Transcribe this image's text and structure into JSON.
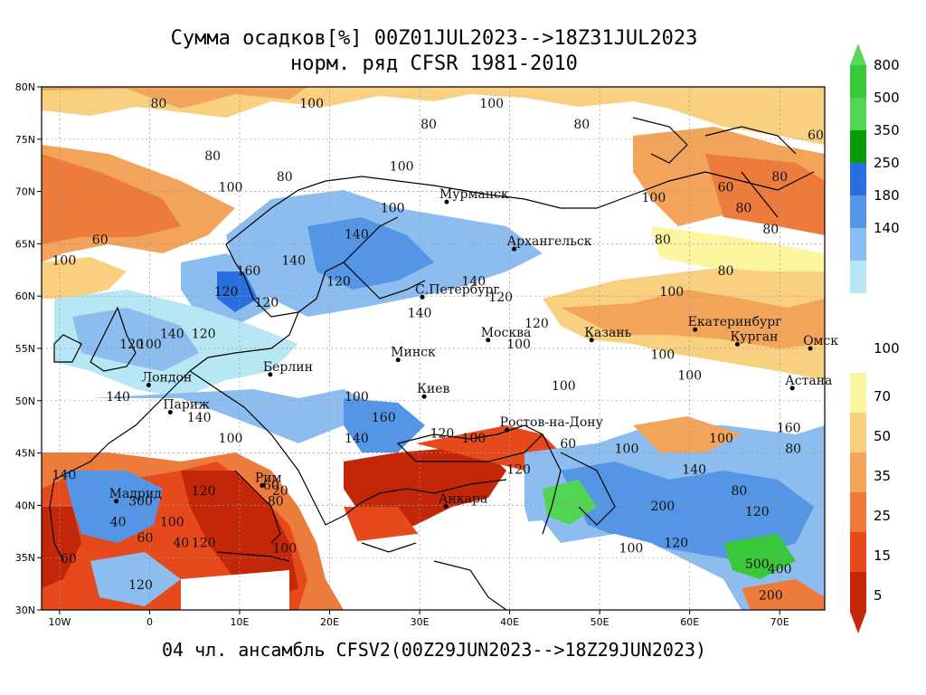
{
  "title": {
    "line1": "Сумма осадков[%] 00Z01JUL2023-->18Z31JUL2023",
    "line2": "норм. ряд CFSR 1981-2010"
  },
  "footer": "04 чл. ансамбль CFSV2(00Z29JUN2023-->18Z29JUN2023)",
  "axes": {
    "lon_ticks": [
      "10W",
      "0",
      "10E",
      "20E",
      "30E",
      "40E",
      "50E",
      "60E",
      "70E"
    ],
    "lat_ticks": [
      "80N",
      "75N",
      "70N",
      "65N",
      "60N",
      "55N",
      "50N",
      "45N",
      "40N",
      "35N",
      "30N"
    ]
  },
  "colorbar": {
    "upper": [
      {
        "label": "800",
        "color": "#39c839"
      },
      {
        "label": "500",
        "color": "#52d552"
      },
      {
        "label": "350",
        "color": "#0a9b0a"
      },
      {
        "label": "250",
        "color": "#2a6fe0"
      },
      {
        "label": "180",
        "color": "#5595e6"
      },
      {
        "label": "140",
        "color": "#8dbcef"
      },
      {
        "label": "",
        "color": "#b7e6f5"
      }
    ],
    "mid_label": "100",
    "lower": [
      {
        "label": "70",
        "color": "#fcf6a0"
      },
      {
        "label": "50",
        "color": "#f8d080"
      },
      {
        "label": "35",
        "color": "#f2a55a"
      },
      {
        "label": "25",
        "color": "#ec7b3c"
      },
      {
        "label": "15",
        "color": "#e64a1c"
      },
      {
        "label": "5",
        "color": "#c42608"
      }
    ],
    "top_arrow_color": "#58d858",
    "bottom_arrow_color": "#c42608"
  },
  "cities": [
    {
      "name": "Мурманск",
      "lon": 33,
      "lat": 69
    },
    {
      "name": "Архангельск",
      "lon": 40.5,
      "lat": 64.5
    },
    {
      "name": "С.Петербург",
      "lon": 30.3,
      "lat": 59.9
    },
    {
      "name": "Москва",
      "lon": 37.6,
      "lat": 55.8
    },
    {
      "name": "Казань",
      "lon": 49.1,
      "lat": 55.8
    },
    {
      "name": "Екатеринбург",
      "lon": 60.6,
      "lat": 56.8
    },
    {
      "name": "Курган",
      "lon": 65.3,
      "lat": 55.4
    },
    {
      "name": "Омск",
      "lon": 73.4,
      "lat": 55
    },
    {
      "name": "Астана",
      "lon": 71.4,
      "lat": 51.2
    },
    {
      "name": "Минск",
      "lon": 27.6,
      "lat": 53.9
    },
    {
      "name": "Киев",
      "lon": 30.5,
      "lat": 50.4
    },
    {
      "name": "Берлин",
      "lon": 13.4,
      "lat": 52.5
    },
    {
      "name": "Лондон",
      "lon": -0.1,
      "lat": 51.5
    },
    {
      "name": "Париж",
      "lon": 2.3,
      "lat": 48.9
    },
    {
      "name": "Ростов-на-Дону",
      "lon": 39.7,
      "lat": 47.2
    },
    {
      "name": "Рим",
      "lon": 12.5,
      "lat": 41.9
    },
    {
      "name": "Мадрид",
      "lon": -3.7,
      "lat": 40.4
    },
    {
      "name": "Анкара",
      "lon": 32.9,
      "lat": 39.9
    }
  ],
  "contour_labels": [
    {
      "t": "80",
      "lon": 1,
      "lat": 78
    },
    {
      "t": "100",
      "lon": 18,
      "lat": 78
    },
    {
      "t": "100",
      "lon": 38,
      "lat": 78
    },
    {
      "t": "80",
      "lon": 48,
      "lat": 76
    },
    {
      "t": "80",
      "lon": 31,
      "lat": 76
    },
    {
      "t": "100",
      "lon": 28,
      "lat": 72
    },
    {
      "t": "80",
      "lon": 7,
      "lat": 73
    },
    {
      "t": "80",
      "lon": 15,
      "lat": 71
    },
    {
      "t": "100",
      "lon": 9,
      "lat": 70
    },
    {
      "t": "100",
      "lon": 27,
      "lat": 68
    },
    {
      "t": "60",
      "lon": -5.5,
      "lat": 65
    },
    {
      "t": "100",
      "lon": -9.5,
      "lat": 63
    },
    {
      "t": "160",
      "lon": 11,
      "lat": 62
    },
    {
      "t": "140",
      "lon": 16,
      "lat": 63
    },
    {
      "t": "120",
      "lon": 21,
      "lat": 61
    },
    {
      "t": "120",
      "lon": 13,
      "lat": 59
    },
    {
      "t": "120",
      "lon": 8.5,
      "lat": 60
    },
    {
      "t": "140",
      "lon": 23,
      "lat": 65.5
    },
    {
      "t": "140",
      "lon": 36,
      "lat": 61
    },
    {
      "t": "120",
      "lon": 39,
      "lat": 59.5
    },
    {
      "t": "120",
      "lon": 43,
      "lat": 57
    },
    {
      "t": "100",
      "lon": 41,
      "lat": 55
    },
    {
      "t": "140",
      "lon": 30,
      "lat": 58
    },
    {
      "t": "100",
      "lon": 58,
      "lat": 60
    },
    {
      "t": "100",
      "lon": 57,
      "lat": 54
    },
    {
      "t": "100",
      "lon": 46,
      "lat": 51
    },
    {
      "t": "100",
      "lon": 60,
      "lat": 52
    },
    {
      "t": "80",
      "lon": 64,
      "lat": 62
    },
    {
      "t": "80",
      "lon": 57,
      "lat": 65
    },
    {
      "t": "80",
      "lon": 66,
      "lat": 68
    },
    {
      "t": "100",
      "lon": 56,
      "lat": 69
    },
    {
      "t": "80",
      "lon": 69,
      "lat": 66
    },
    {
      "t": "60",
      "lon": 64,
      "lat": 70
    },
    {
      "t": "80",
      "lon": 70,
      "lat": 71
    },
    {
      "t": "60",
      "lon": 74,
      "lat": 75
    },
    {
      "t": "120",
      "lon": 6,
      "lat": 56
    },
    {
      "t": "140",
      "lon": 2.5,
      "lat": 56
    },
    {
      "t": "100",
      "lon": 0,
      "lat": 55
    },
    {
      "t": "120",
      "lon": -2,
      "lat": 55
    },
    {
      "t": "140",
      "lon": -3.5,
      "lat": 50
    },
    {
      "t": "100",
      "lon": 9,
      "lat": 46
    },
    {
      "t": "140",
      "lon": 5.5,
      "lat": 48
    },
    {
      "t": "100",
      "lon": 23,
      "lat": 50
    },
    {
      "t": "160",
      "lon": 26,
      "lat": 48
    },
    {
      "t": "140",
      "lon": 23,
      "lat": 46
    },
    {
      "t": "120",
      "lon": 32.5,
      "lat": 46.5
    },
    {
      "t": "100",
      "lon": 36,
      "lat": 46
    },
    {
      "t": "60",
      "lon": 46.5,
      "lat": 45.5
    },
    {
      "t": "120",
      "lon": 41,
      "lat": 43
    },
    {
      "t": "100",
      "lon": 53,
      "lat": 45
    },
    {
      "t": "100",
      "lon": 63.5,
      "lat": 46
    },
    {
      "t": "140",
      "lon": 60.5,
      "lat": 43
    },
    {
      "t": "160",
      "lon": 71,
      "lat": 47
    },
    {
      "t": "80",
      "lon": 71.5,
      "lat": 45
    },
    {
      "t": "200",
      "lon": 57,
      "lat": 39.5
    },
    {
      "t": "80",
      "lon": 65.5,
      "lat": 41
    },
    {
      "t": "120",
      "lon": 67.5,
      "lat": 39
    },
    {
      "t": "100",
      "lon": 53.5,
      "lat": 35.5
    },
    {
      "t": "120",
      "lon": 58.5,
      "lat": 36
    },
    {
      "t": "200",
      "lon": 69,
      "lat": 31
    },
    {
      "t": "500",
      "lon": 67.5,
      "lat": 34
    },
    {
      "t": "400",
      "lon": 70,
      "lat": 33.5
    },
    {
      "t": "140",
      "lon": -9.5,
      "lat": 42.5
    },
    {
      "t": "300",
      "lon": -1,
      "lat": 40
    },
    {
      "t": "120",
      "lon": 6,
      "lat": 41
    },
    {
      "t": "100",
      "lon": 2.5,
      "lat": 38
    },
    {
      "t": "60",
      "lon": -0.5,
      "lat": 36.5
    },
    {
      "t": "40",
      "lon": -3.5,
      "lat": 38
    },
    {
      "t": "40",
      "lon": 3.5,
      "lat": 36
    },
    {
      "t": "120",
      "lon": 6,
      "lat": 36
    },
    {
      "t": "100",
      "lon": 15,
      "lat": 35.5
    },
    {
      "t": "120",
      "lon": -1,
      "lat": 32
    },
    {
      "t": "60",
      "lon": -9,
      "lat": 34.5
    },
    {
      "t": "20",
      "lon": 14.5,
      "lat": 41
    },
    {
      "t": "60",
      "lon": 13.5,
      "lat": 41.5
    },
    {
      "t": "80",
      "lon": 14,
      "lat": 40
    }
  ]
}
